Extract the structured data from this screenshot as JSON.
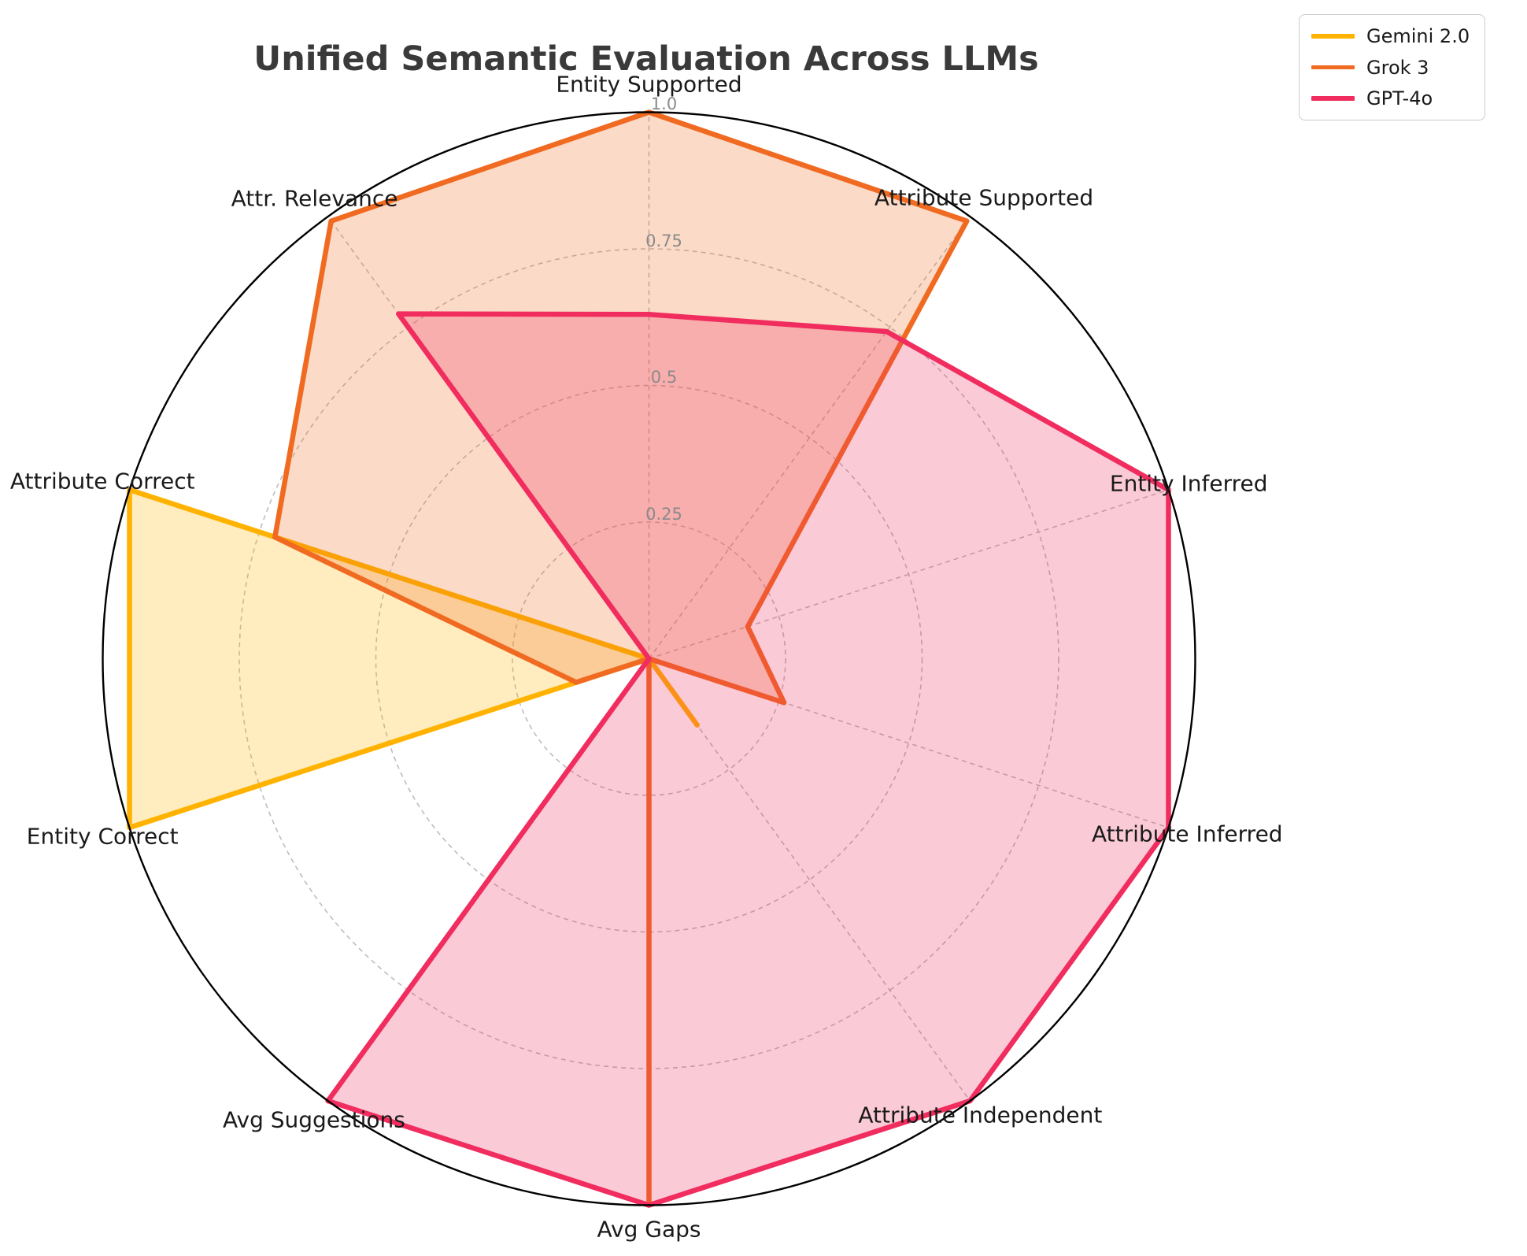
{
  "title": "Unified Semantic Evaluation Across LLMs",
  "background_color": "#ffffff",
  "chart_data": {
    "type": "radar",
    "title": "Unified Semantic Evaluation Across LLMs",
    "categories": [
      "Entity Supported",
      "Attribute Supported",
      "Entity Inferred",
      "Attribute Inferred",
      "Attribute Independent",
      "Avg Gaps",
      "Avg Suggestions",
      "Entity Correct",
      "Attribute Correct",
      "Attr. Relevance"
    ],
    "series": [
      {
        "name": "Gemini 2.0",
        "color": "#FFB300",
        "values": [
          0,
          0,
          0,
          0,
          0.15,
          0,
          0,
          1.0,
          1.0,
          0
        ]
      },
      {
        "name": "Grok 3",
        "color": "#F06A21",
        "values": [
          1.0,
          0.99,
          0.19,
          0.26,
          0,
          1.0,
          0,
          0.14,
          0.72,
          0.99
        ]
      },
      {
        "name": "GPT-4o",
        "color": "#F02D5E",
        "values": [
          0.63,
          0.74,
          1.0,
          1.0,
          1.0,
          1.0,
          1.0,
          0,
          0,
          0.78
        ]
      }
    ],
    "rlim": [
      0,
      1.0
    ],
    "radial_ticks": [
      0.25,
      0.5,
      0.75,
      1.0
    ],
    "radial_tick_labels": [
      "0.25",
      "0.5",
      "0.75",
      "1.0"
    ],
    "grid": "dashed",
    "grid_color": "#bdbdbd",
    "outline_color": "#000000",
    "fill_opacity": 0.25,
    "legend_position": "upper-right"
  }
}
